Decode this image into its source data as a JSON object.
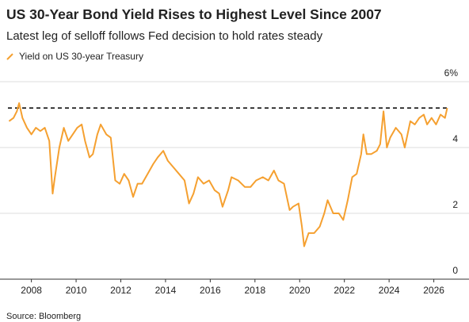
{
  "chart_data": {
    "type": "line",
    "title": "US 30-Year Bond Yield Rises to Highest Level Since 2007",
    "subtitle": "Latest leg of selloff follows Fed decision to hold rates steady",
    "source": "Source: Bloomberg",
    "series": [
      {
        "name": "Yield on US 30-year Treasury",
        "color": "#f5a030",
        "x": [
          2007.0,
          2007.2,
          2007.35,
          2007.45,
          2007.6,
          2007.8,
          2008.0,
          2008.2,
          2008.4,
          2008.6,
          2008.8,
          2008.95,
          2009.05,
          2009.25,
          2009.45,
          2009.65,
          2009.85,
          2010.05,
          2010.25,
          2010.4,
          2010.6,
          2010.75,
          2010.95,
          2011.1,
          2011.35,
          2011.55,
          2011.75,
          2011.95,
          2012.15,
          2012.35,
          2012.55,
          2012.75,
          2012.95,
          2013.2,
          2013.45,
          2013.65,
          2013.9,
          2014.1,
          2014.35,
          2014.6,
          2014.85,
          2015.05,
          2015.25,
          2015.45,
          2015.7,
          2015.95,
          2016.2,
          2016.4,
          2016.55,
          2016.8,
          2016.95,
          2017.25,
          2017.55,
          2017.8,
          2018.05,
          2018.35,
          2018.6,
          2018.85,
          2019.05,
          2019.3,
          2019.55,
          2019.7,
          2019.95,
          2020.1,
          2020.2,
          2020.4,
          2020.65,
          2020.9,
          2021.1,
          2021.25,
          2021.5,
          2021.75,
          2021.95,
          2022.15,
          2022.35,
          2022.55,
          2022.75,
          2022.85,
          2023.0,
          2023.2,
          2023.45,
          2023.6,
          2023.75,
          2023.9,
          2024.05,
          2024.3,
          2024.55,
          2024.7,
          2024.95,
          2025.15,
          2025.35,
          2025.55,
          2025.7,
          2025.9,
          2026.1,
          2026.3,
          2026.5,
          2026.6
        ],
        "values": [
          4.8,
          4.9,
          5.1,
          5.35,
          4.9,
          4.6,
          4.4,
          4.6,
          4.5,
          4.6,
          4.2,
          2.6,
          3.1,
          4.0,
          4.6,
          4.2,
          4.4,
          4.6,
          4.7,
          4.2,
          3.7,
          3.8,
          4.4,
          4.7,
          4.4,
          4.3,
          3.0,
          2.9,
          3.2,
          3.0,
          2.5,
          2.9,
          2.9,
          3.2,
          3.5,
          3.7,
          3.9,
          3.6,
          3.4,
          3.2,
          3.0,
          2.3,
          2.6,
          3.1,
          2.9,
          3.0,
          2.7,
          2.6,
          2.2,
          2.7,
          3.1,
          3.0,
          2.8,
          2.8,
          3.0,
          3.1,
          3.0,
          3.3,
          3.0,
          2.9,
          2.1,
          2.2,
          2.3,
          1.6,
          1.0,
          1.4,
          1.4,
          1.6,
          2.0,
          2.4,
          2.0,
          2.0,
          1.8,
          2.4,
          3.1,
          3.2,
          3.8,
          4.4,
          3.8,
          3.8,
          3.9,
          4.1,
          5.1,
          4.0,
          4.3,
          4.6,
          4.4,
          4.0,
          4.8,
          4.7,
          4.9,
          5.0,
          4.7,
          4.9,
          4.7,
          5.0,
          4.9,
          5.2
        ]
      }
    ],
    "reference_line": 5.2,
    "xlim": [
      2006.95,
      2027.0
    ],
    "xticks": [
      2008,
      2010,
      2012,
      2014,
      2016,
      2018,
      2020,
      2022,
      2024,
      2026
    ],
    "ylim": [
      0,
      6
    ],
    "yticks": [
      0,
      2,
      4,
      {
        "value": 6,
        "label": "6%"
      }
    ],
    "grid": true
  }
}
